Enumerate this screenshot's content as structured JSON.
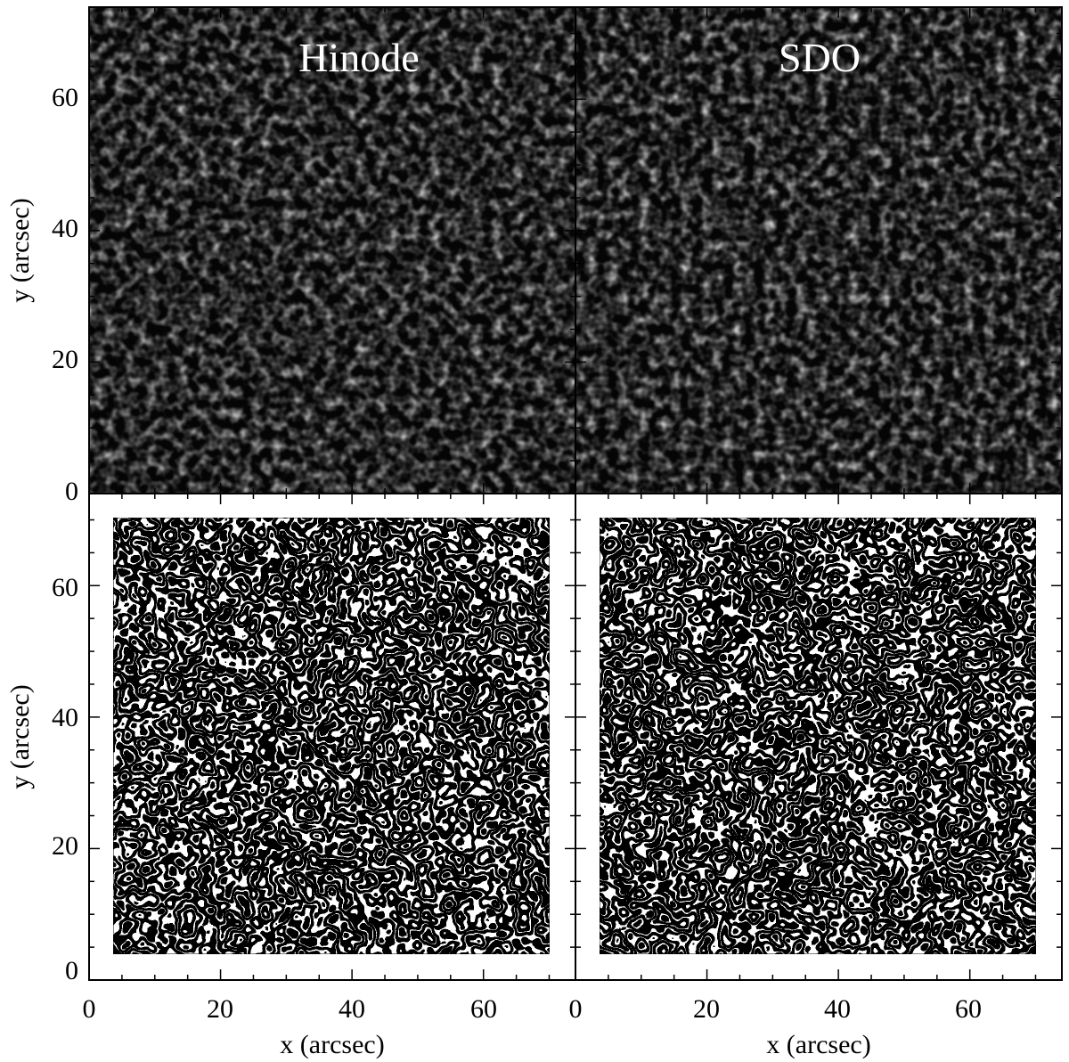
{
  "figure": {
    "panels": [
      {
        "id": "top-left",
        "title": "Hinode",
        "kind": "intensity",
        "seed": 7
      },
      {
        "id": "top-right",
        "title": "SDO",
        "kind": "intensity",
        "seed": 13
      },
      {
        "id": "bottom-left",
        "title": "",
        "kind": "segmentation",
        "seed": 21
      },
      {
        "id": "bottom-right",
        "title": "",
        "kind": "segmentation",
        "seed": 34
      }
    ],
    "axes": {
      "xlabel": "x (arcsec)",
      "ylabel": "y (arcsec)",
      "xlim": [
        0,
        74
      ],
      "ylim": [
        0,
        74
      ],
      "major_ticks": [
        "0",
        "20",
        "40",
        "60"
      ],
      "major_values": [
        0,
        20,
        40,
        60
      ],
      "minor_step": 5,
      "segmentation_field": [
        4,
        71
      ]
    },
    "colors": {
      "background": "#000000",
      "foreground": "#ffffff",
      "frame": "#000000"
    }
  }
}
